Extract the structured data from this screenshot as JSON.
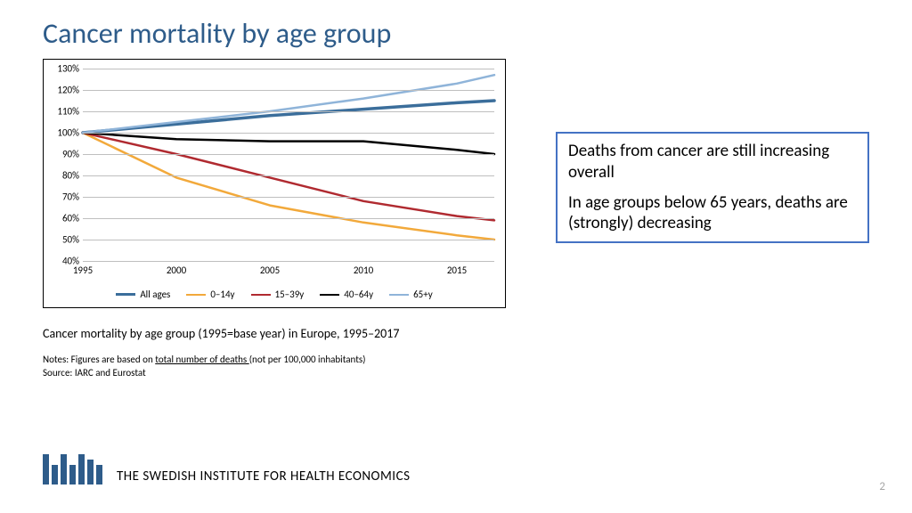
{
  "title": {
    "text": "Cancer mortality by age group",
    "color": "#2e5c8a",
    "fontsize": 32
  },
  "chart": {
    "type": "line",
    "background_color": "#ffffff",
    "grid_color": "#bfbfbf",
    "border_color": "#000000",
    "ylim": [
      40,
      130
    ],
    "ytick_step": 10,
    "yticks": [
      "40%",
      "50%",
      "60%",
      "70%",
      "80%",
      "90%",
      "100%",
      "110%",
      "120%",
      "130%"
    ],
    "x_values": [
      1995,
      2000,
      2005,
      2010,
      2015,
      2017
    ],
    "xticks": [
      1995,
      2000,
      2005,
      2010,
      2015
    ],
    "label_fontsize": 11,
    "series": [
      {
        "name": "All ages",
        "color": "#3b6e9b",
        "width": 3.5,
        "y": [
          100,
          104,
          108,
          111,
          114,
          115
        ]
      },
      {
        "name": "0–14y",
        "color": "#f2a93b",
        "width": 2.5,
        "y": [
          100,
          79,
          66,
          58,
          52,
          50
        ]
      },
      {
        "name": "15–39y",
        "color": "#b02a30",
        "width": 2.5,
        "y": [
          100,
          90,
          79,
          68,
          61,
          59
        ]
      },
      {
        "name": "40–64y",
        "color": "#000000",
        "width": 2.5,
        "y": [
          100,
          97,
          96,
          96,
          92,
          90
        ]
      },
      {
        "name": "65+y",
        "color": "#8fb4d9",
        "width": 2.5,
        "y": [
          100,
          105,
          110,
          116,
          123,
          127
        ]
      }
    ]
  },
  "callout": {
    "border_color": "#4472c4",
    "fontsize": 19,
    "p1": "Deaths from cancer are still increasing overall",
    "p2": "In age groups below 65 years, deaths are (strongly) decreasing"
  },
  "caption": "Cancer mortality by age group (1995=base year) in Europe, 1995–2017",
  "notes": {
    "line1a": "Notes: Figures are based on ",
    "line1u": "total number of deaths ",
    "line1b": "(not per 100,000 inhabitants)",
    "line2": "Source: IARC and Eurostat"
  },
  "footer": {
    "org": "THE SWEDISH INSTITUTE FOR HEALTH ECONOMICS",
    "logo_color": "#2e5c8a",
    "page": "2",
    "page_color": "#a6a6a6"
  }
}
